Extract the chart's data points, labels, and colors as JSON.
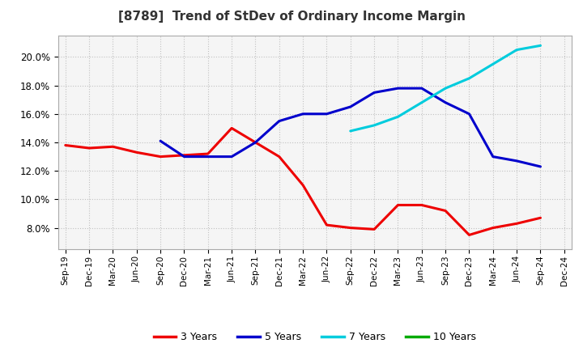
{
  "title": "[8789]  Trend of StDev of Ordinary Income Margin",
  "ylim": [
    0.065,
    0.215
  ],
  "yticks": [
    0.08,
    0.1,
    0.12,
    0.14,
    0.16,
    0.18,
    0.2
  ],
  "background_color": "#ffffff",
  "plot_bg_color": "#f5f5f5",
  "grid_color": "#bbbbbb",
  "x_labels": [
    "Sep-19",
    "Dec-19",
    "Mar-20",
    "Jun-20",
    "Sep-20",
    "Dec-20",
    "Mar-21",
    "Jun-21",
    "Sep-21",
    "Dec-21",
    "Mar-22",
    "Jun-22",
    "Sep-22",
    "Dec-22",
    "Mar-23",
    "Jun-23",
    "Sep-23",
    "Dec-23",
    "Mar-24",
    "Jun-24",
    "Sep-24",
    "Dec-24"
  ],
  "series": {
    "3 Years": {
      "color": "#ee0000",
      "linewidth": 2.2,
      "values": [
        0.138,
        0.136,
        0.137,
        0.133,
        0.13,
        0.131,
        0.132,
        0.15,
        0.14,
        0.13,
        0.11,
        0.082,
        0.08,
        0.079,
        0.096,
        0.096,
        0.092,
        0.075,
        0.08,
        0.083,
        0.087,
        null
      ]
    },
    "5 Years": {
      "color": "#0000cc",
      "linewidth": 2.2,
      "values": [
        null,
        null,
        null,
        null,
        0.141,
        0.13,
        0.13,
        0.13,
        0.14,
        0.155,
        0.16,
        0.16,
        0.165,
        0.175,
        0.178,
        0.178,
        0.168,
        0.16,
        0.13,
        0.127,
        0.123,
        null
      ]
    },
    "7 Years": {
      "color": "#00ccdd",
      "linewidth": 2.2,
      "values": [
        null,
        null,
        null,
        null,
        null,
        null,
        null,
        null,
        null,
        null,
        null,
        null,
        0.148,
        0.152,
        0.158,
        0.168,
        0.178,
        0.185,
        0.195,
        0.205,
        0.208,
        null
      ]
    },
    "10 Years": {
      "color": "#00aa00",
      "linewidth": 2.2,
      "values": [
        null,
        null,
        null,
        null,
        null,
        null,
        null,
        null,
        null,
        null,
        null,
        null,
        null,
        null,
        null,
        null,
        null,
        null,
        null,
        null,
        null,
        null
      ]
    }
  },
  "legend_entries": [
    "3 Years",
    "5 Years",
    "7 Years",
    "10 Years"
  ],
  "legend_colors": [
    "#ee0000",
    "#0000cc",
    "#00ccdd",
    "#00aa00"
  ]
}
